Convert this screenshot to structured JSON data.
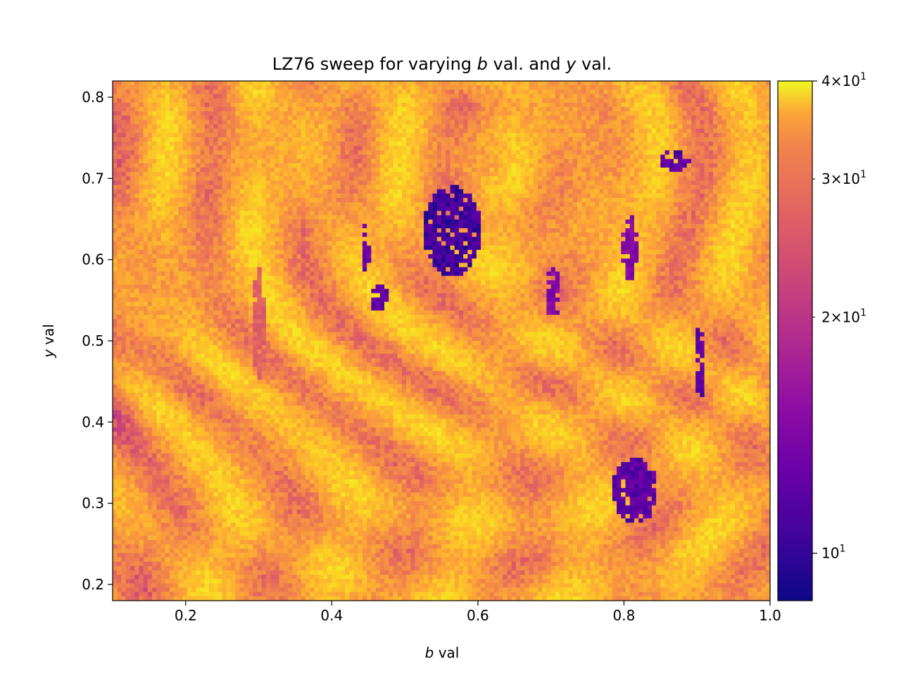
{
  "chart_data": {
    "type": "heatmap",
    "title_parts": [
      "LZ76 sweep for varying ",
      "b",
      " val. and ",
      "y",
      " val."
    ],
    "xlabel_parts": [
      "b",
      " val"
    ],
    "ylabel_parts": [
      "y",
      " val"
    ],
    "xlim": [
      0.1,
      1.0
    ],
    "ylim": [
      0.18,
      0.82
    ],
    "xticks": [
      0.2,
      0.4,
      0.6,
      0.8,
      1.0
    ],
    "xtick_labels": [
      "0.2",
      "0.4",
      "0.6",
      "0.8",
      "1.0"
    ],
    "yticks": [
      0.2,
      0.3,
      0.4,
      0.5,
      0.6,
      0.7,
      0.8
    ],
    "ytick_labels": [
      "0.2",
      "0.3",
      "0.4",
      "0.5",
      "0.6",
      "0.7",
      "0.8"
    ],
    "colormap": "plasma",
    "colorbar": {
      "scale": "log",
      "range": [
        8.7,
        40
      ],
      "major_ticks": [
        10,
        40
      ],
      "major_tick_labels": [
        {
          "base": "10",
          "exp": "1",
          "mantissa": ""
        },
        {
          "base": "10",
          "exp": "1",
          "mantissa": "4"
        }
      ],
      "minor_ticks": [
        20,
        30
      ],
      "minor_tick_labels": [
        {
          "base": "10",
          "exp": "1",
          "mantissa": "2"
        },
        {
          "base": "10",
          "exp": "1",
          "mantissa": "3"
        }
      ]
    },
    "background_value": 29,
    "low_complexity_regions": [
      {
        "b": 0.565,
        "y": 0.635,
        "rb": 0.04,
        "ry": 0.055,
        "value": 9
      },
      {
        "b": 0.815,
        "y": 0.315,
        "rb": 0.032,
        "ry": 0.04,
        "value": 10
      },
      {
        "b": 0.87,
        "y": 0.722,
        "rb": 0.02,
        "ry": 0.013,
        "value": 10
      },
      {
        "b": 0.905,
        "y": 0.475,
        "rb": 0.008,
        "ry": 0.045,
        "value": 10
      },
      {
        "b": 0.808,
        "y": 0.615,
        "rb": 0.01,
        "ry": 0.04,
        "value": 12
      },
      {
        "b": 0.465,
        "y": 0.553,
        "rb": 0.012,
        "ry": 0.018,
        "value": 10
      },
      {
        "b": 0.447,
        "y": 0.615,
        "rb": 0.005,
        "ry": 0.03,
        "value": 11
      },
      {
        "b": 0.703,
        "y": 0.56,
        "rb": 0.012,
        "ry": 0.03,
        "value": 12
      },
      {
        "b": 0.3,
        "y": 0.52,
        "rb": 0.008,
        "ry": 0.07,
        "value": 20
      },
      {
        "b": 0.36,
        "y": 0.62,
        "rb": 0.003,
        "ry": 0.03,
        "value": 20
      }
    ]
  }
}
